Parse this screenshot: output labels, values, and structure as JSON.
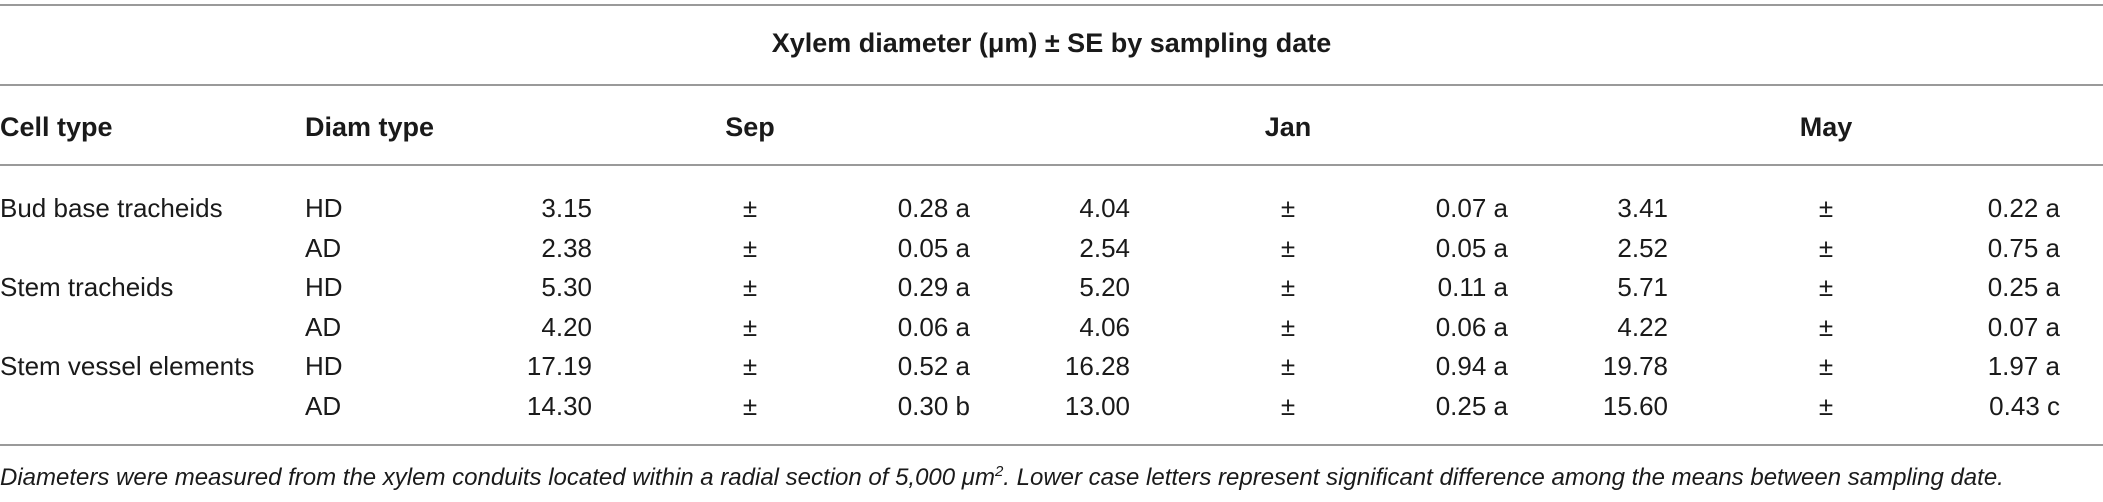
{
  "table": {
    "title": "Xylem diameter (μm) ± SE by sampling date",
    "headers": {
      "cell_type": "Cell type",
      "diam_type": "Diam type",
      "sep": "Sep",
      "jan": "Jan",
      "may": "May"
    },
    "pm": "±",
    "rows": [
      {
        "cell_type": "Bud base tracheids",
        "diam_type": "HD",
        "sep_mean": "3.15",
        "sep_se": "0.28 a",
        "jan_mean": "4.04",
        "jan_se": "0.07 a",
        "may_mean": "3.41",
        "may_se": "0.22 a"
      },
      {
        "cell_type": "",
        "diam_type": "AD",
        "sep_mean": "2.38",
        "sep_se": "0.05 a",
        "jan_mean": "2.54",
        "jan_se": "0.05 a",
        "may_mean": "2.52",
        "may_se": "0.75 a"
      },
      {
        "cell_type": "Stem tracheids",
        "diam_type": "HD",
        "sep_mean": "5.30",
        "sep_se": "0.29 a",
        "jan_mean": "5.20",
        "jan_se": "0.11 a",
        "may_mean": "5.71",
        "may_se": "0.25 a"
      },
      {
        "cell_type": "",
        "diam_type": "AD",
        "sep_mean": "4.20",
        "sep_se": "0.06 a",
        "jan_mean": "4.06",
        "jan_se": "0.06 a",
        "may_mean": "4.22",
        "may_se": "0.07 a"
      },
      {
        "cell_type": "Stem vessel elements",
        "diam_type": "HD",
        "sep_mean": "17.19",
        "sep_se": "0.52 a",
        "jan_mean": "16.28",
        "jan_se": "0.94 a",
        "may_mean": "19.78",
        "may_se": "1.97 a"
      },
      {
        "cell_type": "",
        "diam_type": "AD",
        "sep_mean": "14.30",
        "sep_se": "0.30 b",
        "jan_mean": "13.00",
        "jan_se": "0.25 a",
        "may_mean": "15.60",
        "may_se": "0.43 c"
      }
    ],
    "footnote_a": "Diameters were measured from the xylem conduits located within a radial section of 5,000 μm",
    "footnote_sup": "2",
    "footnote_b": ". Lower case letters represent significant difference among the means between sampling date."
  }
}
